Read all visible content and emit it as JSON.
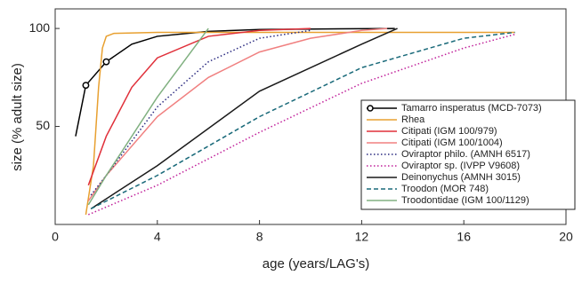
{
  "chart_data": {
    "type": "line",
    "x_label": "age (years/LAG's)",
    "y_label": "size (% adult size)",
    "xlim": [
      0,
      20
    ],
    "ylim": [
      0,
      110
    ],
    "xticks": [
      0,
      4,
      8,
      12,
      16,
      20
    ],
    "yticks": [
      50,
      100
    ],
    "legend": "right",
    "series": [
      {
        "name": "Tamarro insperatus (MCD-7073)",
        "color": "#000000",
        "dash": "solid",
        "marker": "circle",
        "marker_x": [
          1.2,
          2
        ],
        "x": [
          0.8,
          1.2,
          2,
          3,
          4,
          6,
          8,
          13.3
        ],
        "values": [
          45,
          71,
          83,
          92,
          96,
          98.5,
          99.5,
          100
        ]
      },
      {
        "name": "Rhea",
        "color": "#e8a030",
        "dash": "solid",
        "x": [
          1.2,
          1.5,
          1.7,
          1.85,
          2,
          2.3,
          4,
          10,
          18
        ],
        "values": [
          5,
          30,
          70,
          90,
          96,
          97.5,
          98,
          98,
          98
        ]
      },
      {
        "name": "Citipati (IGM 100/979)",
        "color": "#e0303a",
        "dash": "solid",
        "x": [
          1.3,
          2,
          3,
          4,
          6,
          8,
          10
        ],
        "values": [
          20,
          45,
          70,
          85,
          96,
          99,
          100
        ]
      },
      {
        "name": "Citipati (IGM 100/1004)",
        "color": "#f08080",
        "dash": "solid",
        "x": [
          1.3,
          2,
          4,
          6,
          8,
          10,
          12,
          13
        ],
        "values": [
          12,
          25,
          55,
          75,
          88,
          95,
          99,
          100
        ]
      },
      {
        "name": "Oviraptor philo. (AMNH 6517)",
        "color": "#2a2a80",
        "dash": "dotted",
        "x": [
          1.4,
          2,
          4,
          6,
          8,
          10
        ],
        "values": [
          15,
          25,
          60,
          83,
          95,
          99
        ]
      },
      {
        "name": "Oviraptor sp. (IVPP V9608)",
        "color": "#c0209a",
        "dash": "dotted",
        "x": [
          1.3,
          4,
          8,
          12,
          16,
          18
        ],
        "values": [
          5,
          20,
          47,
          72,
          90,
          97
        ]
      },
      {
        "name": "Deinonychus (AMNH 3015)",
        "color": "#1a1a1a",
        "dash": "solid",
        "x": [
          1.4,
          4,
          8,
          12,
          13.4
        ],
        "values": [
          8,
          30,
          68,
          92,
          100
        ]
      },
      {
        "name": "Troodon (MOR 748)",
        "color": "#1a6a7a",
        "dash": "dashed",
        "x": [
          1.4,
          4,
          8,
          12,
          16,
          18
        ],
        "values": [
          8,
          25,
          55,
          80,
          95,
          98
        ]
      },
      {
        "name": "Troodontidae (IGM 100/1129)",
        "color": "#80b080",
        "dash": "solid",
        "x": [
          1.3,
          2,
          4,
          6
        ],
        "values": [
          10,
          25,
          65,
          100
        ]
      }
    ]
  }
}
